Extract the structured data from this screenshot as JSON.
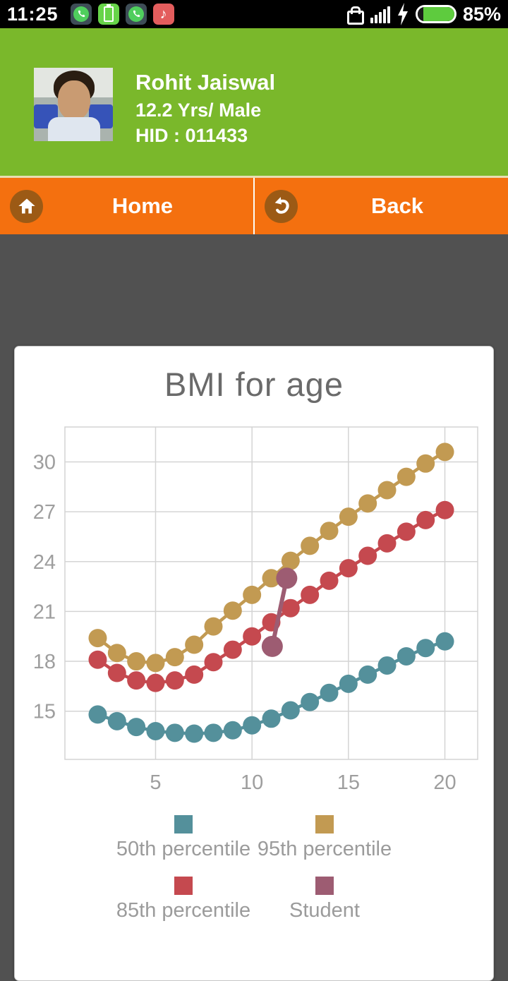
{
  "status_bar": {
    "time": "11:25",
    "battery_percent": "85%",
    "notification_icons": [
      "whatsapp-icon",
      "battery-app-icon",
      "whatsapp-icon",
      "music-app-icon"
    ],
    "music_note_glyph": "♪",
    "right_icons": [
      "lock-icon",
      "signal-bars-icon",
      "charging-bolt-icon",
      "battery-icon"
    ],
    "colors": {
      "bar_bg": "#000000",
      "battery_fill": "#5ecb3e"
    }
  },
  "header": {
    "name": "Rohit Jaiswal",
    "age_gender": "12.2 Yrs/ Male",
    "hid": "HID : 011433",
    "bg_color": "#7ab82b"
  },
  "nav": {
    "home_label": "Home",
    "back_label": "Back",
    "bg_color": "#f4700f",
    "icon_circle_color": "#9c5a15"
  },
  "chart_data": {
    "type": "line",
    "title": "BMI for age",
    "xlabel": "",
    "ylabel": "",
    "x": [
      2,
      3,
      4,
      5,
      6,
      7,
      8,
      9,
      10,
      11,
      12,
      13,
      14,
      15,
      16,
      17,
      18,
      19,
      20
    ],
    "series": [
      {
        "name": "50th percentile",
        "color": "#54909b",
        "values": [
          14.8,
          14.4,
          14.05,
          13.8,
          13.7,
          13.65,
          13.7,
          13.85,
          14.15,
          14.55,
          15.05,
          15.55,
          16.1,
          16.65,
          17.2,
          17.75,
          18.3,
          18.8,
          19.2
        ]
      },
      {
        "name": "85th percentile",
        "color": "#c5494f",
        "values": [
          18.1,
          17.3,
          16.85,
          16.7,
          16.85,
          17.2,
          17.95,
          18.7,
          19.5,
          20.35,
          21.2,
          22.0,
          22.85,
          23.6,
          24.35,
          25.1,
          25.8,
          26.5,
          27.1
        ]
      },
      {
        "name": "95th percentile",
        "color": "#c29a52",
        "values": [
          19.4,
          18.5,
          18.0,
          17.9,
          18.25,
          19.0,
          20.1,
          21.05,
          22.0,
          23.0,
          24.05,
          24.95,
          25.85,
          26.7,
          27.5,
          28.3,
          29.1,
          29.9,
          30.6
        ]
      },
      {
        "name": "Student",
        "color": "#9d5c72",
        "points": [
          {
            "x": 11.05,
            "y": 18.9
          },
          {
            "x": 11.8,
            "y": 23.0
          }
        ]
      }
    ],
    "x_ticks": [
      5,
      10,
      15,
      20
    ],
    "y_ticks": [
      15,
      18,
      21,
      24,
      27,
      30
    ],
    "x_range": [
      0.3,
      21.7
    ],
    "y_range": [
      12.1,
      32.1
    ],
    "grid": true,
    "legend_position": "bottom",
    "legend_order": [
      "50th percentile",
      "95th percentile",
      "85th percentile",
      "Student"
    ],
    "draw_order": [
      "95th percentile",
      "85th percentile",
      "50th percentile",
      "Student"
    ]
  }
}
